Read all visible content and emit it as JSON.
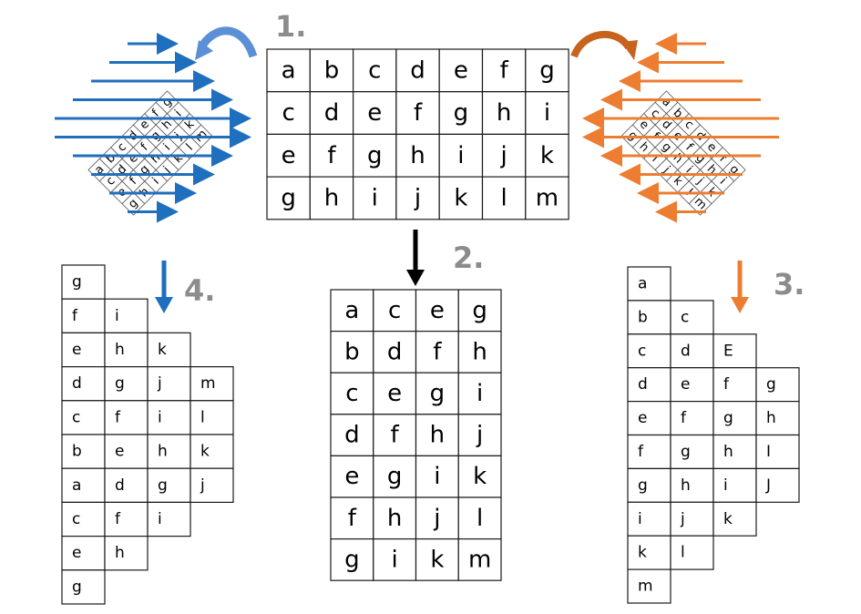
{
  "steps": [
    {
      "id": "step1",
      "label": "1."
    },
    {
      "id": "step2",
      "label": "2."
    },
    {
      "id": "step3",
      "label": "3."
    },
    {
      "id": "step4",
      "label": "4."
    }
  ],
  "colors": {
    "blue": "#1f6fbf",
    "blue_curve": "#5b8fd6",
    "orange": "#ec7d31",
    "orange_curve": "#c8631e",
    "black": "#000000",
    "step_gray": "#8c8c8c"
  },
  "original_grid": [
    [
      "a",
      "b",
      "c",
      "d",
      "e",
      "f",
      "g"
    ],
    [
      "c",
      "d",
      "e",
      "f",
      "g",
      "h",
      "i"
    ],
    [
      "e",
      "f",
      "g",
      "h",
      "i",
      "j",
      "k"
    ],
    [
      "g",
      "h",
      "i",
      "j",
      "k",
      "l",
      "m"
    ]
  ],
  "transposed_grid": [
    [
      "a",
      "c",
      "e",
      "g"
    ],
    [
      "b",
      "d",
      "f",
      "h"
    ],
    [
      "c",
      "e",
      "g",
      "i"
    ],
    [
      "d",
      "f",
      "h",
      "j"
    ],
    [
      "e",
      "g",
      "i",
      "k"
    ],
    [
      "f",
      "h",
      "j",
      "l"
    ],
    [
      "g",
      "i",
      "k",
      "m"
    ]
  ],
  "diagonal_right": [
    [
      "a"
    ],
    [
      "b",
      "c"
    ],
    [
      "c",
      "d",
      "E"
    ],
    [
      "d",
      "e",
      "f",
      "g"
    ],
    [
      "e",
      "f",
      "g",
      "h"
    ],
    [
      "f",
      "g",
      "h",
      "I"
    ],
    [
      "g",
      "h",
      "i",
      "J"
    ],
    [
      "i",
      "j",
      "k"
    ],
    [
      "k",
      "l"
    ],
    [
      "m"
    ]
  ],
  "diagonal_left": [
    [
      "g"
    ],
    [
      "f",
      "i"
    ],
    [
      "e",
      "h",
      "k"
    ],
    [
      "d",
      "g",
      "j",
      "m"
    ],
    [
      "c",
      "f",
      "i",
      "l"
    ],
    [
      "b",
      "e",
      "h",
      "k"
    ],
    [
      "a",
      "d",
      "g",
      "j"
    ],
    [
      "c",
      "f",
      "i"
    ],
    [
      "e",
      "h"
    ],
    [
      "g"
    ]
  ]
}
